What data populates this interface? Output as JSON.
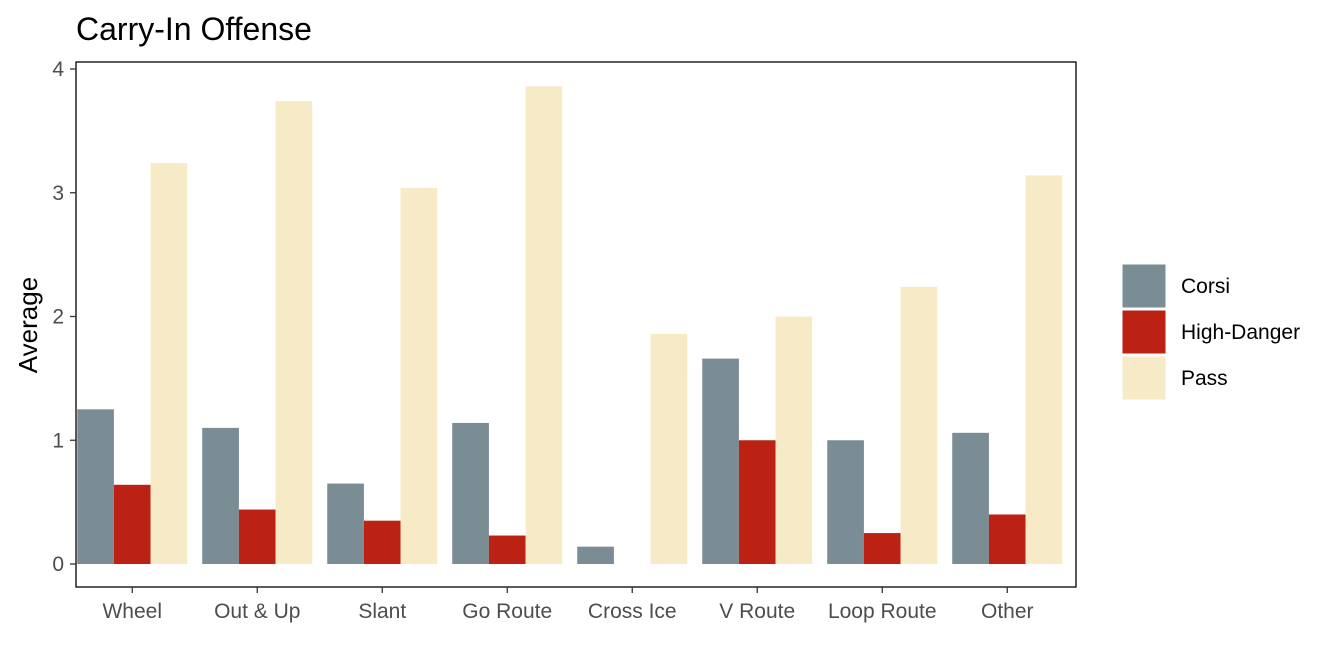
{
  "chart_data": {
    "type": "bar",
    "title": "Carry-In Offense",
    "xlabel": "",
    "ylabel": "Average",
    "ylim": [
      0,
      4
    ],
    "yticks": [
      0,
      1,
      2,
      3,
      4
    ],
    "grid": false,
    "legend_position": "right",
    "categories": [
      "Wheel",
      "Out & Up",
      "Slant",
      "Go Route",
      "Cross Ice",
      "V Route",
      "Loop Route",
      "Other"
    ],
    "series": [
      {
        "name": "Corsi",
        "color": "#7a8c94",
        "values": [
          1.25,
          1.1,
          0.65,
          1.14,
          0.14,
          1.66,
          1.0,
          1.06
        ]
      },
      {
        "name": "High-Danger",
        "color": "#bb2214",
        "values": [
          0.64,
          0.44,
          0.35,
          0.23,
          0.0,
          1.0,
          0.25,
          0.4
        ]
      },
      {
        "name": "Pass",
        "color": "#f7eac6",
        "values": [
          3.24,
          3.74,
          3.04,
          3.86,
          1.86,
          2.0,
          2.24,
          3.14
        ]
      }
    ]
  }
}
